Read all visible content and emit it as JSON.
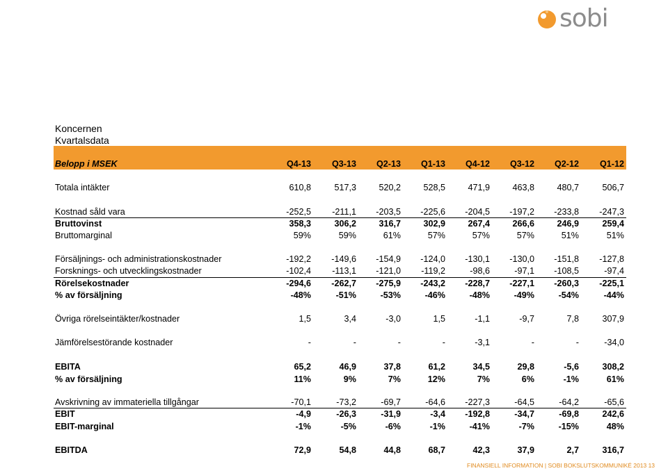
{
  "brand": {
    "logo_text": "sobi",
    "accent": "#f29a2e",
    "footer_color": "#e08a1e",
    "logo_gray": "#8c8c8c"
  },
  "heading": {
    "line1": "Koncernen",
    "line2": "Kvartalsdata"
  },
  "table": {
    "unit_label": "Belopp i MSEK",
    "columns": [
      "Q4-13",
      "Q3-13",
      "Q2-13",
      "Q1-13",
      "Q4-12",
      "Q3-12",
      "Q2-12",
      "Q1-12"
    ],
    "rows": [
      {
        "label": "Totala intäkter",
        "values": [
          "610,8",
          "517,3",
          "520,2",
          "528,5",
          "471,9",
          "463,8",
          "480,7",
          "506,7"
        ]
      },
      {
        "label": "Kostnad såld vara",
        "values": [
          "-252,5",
          "-211,1",
          "-203,5",
          "-225,6",
          "-204,5",
          "-197,2",
          "-233,8",
          "-247,3"
        ]
      },
      {
        "label": "Bruttovinst",
        "values": [
          "358,3",
          "306,2",
          "316,7",
          "302,9",
          "267,4",
          "266,6",
          "246,9",
          "259,4"
        ]
      },
      {
        "label": "Bruttomarginal",
        "values": [
          "59%",
          "59%",
          "61%",
          "57%",
          "57%",
          "57%",
          "51%",
          "51%"
        ]
      },
      {
        "label": "Försäljnings- och administrationskostnader",
        "values": [
          "-192,2",
          "-149,6",
          "-154,9",
          "-124,0",
          "-130,1",
          "-130,0",
          "-151,8",
          "-127,8"
        ]
      },
      {
        "label": "Forsknings- och utvecklingskostnader",
        "values": [
          "-102,4",
          "-113,1",
          "-121,0",
          "-119,2",
          "-98,6",
          "-97,1",
          "-108,5",
          "-97,4"
        ]
      },
      {
        "label": "Rörelsekostnader",
        "values": [
          "-294,6",
          "-262,7",
          "-275,9",
          "-243,2",
          "-228,7",
          "-227,1",
          "-260,3",
          "-225,1"
        ]
      },
      {
        "label": "% av försäljning",
        "values": [
          "-48%",
          "-51%",
          "-53%",
          "-46%",
          "-48%",
          "-49%",
          "-54%",
          "-44%"
        ]
      },
      {
        "label": "Övriga rörelseintäkter/kostnader",
        "values": [
          "1,5",
          "3,4",
          "-3,0",
          "1,5",
          "-1,1",
          "-9,7",
          "7,8",
          "307,9"
        ]
      },
      {
        "label": "Jämförelsestörande kostnader",
        "values": [
          "-",
          "-",
          "-",
          "-",
          "-3,1",
          "-",
          "-",
          "-34,0"
        ]
      },
      {
        "label": "EBITA",
        "values": [
          "65,2",
          "46,9",
          "37,8",
          "61,2",
          "34,5",
          "29,8",
          "-5,6",
          "308,2"
        ]
      },
      {
        "label": "% av försäljning",
        "values": [
          "11%",
          "9%",
          "7%",
          "12%",
          "7%",
          "6%",
          "-1%",
          "61%"
        ]
      },
      {
        "label": "Avskrivning av immateriella tillgångar",
        "values": [
          "-70,1",
          "-73,2",
          "-69,7",
          "-64,6",
          "-227,3",
          "-64,5",
          "-64,2",
          "-65,6"
        ]
      },
      {
        "label": "EBIT",
        "values": [
          "-4,9",
          "-26,3",
          "-31,9",
          "-3,4",
          "-192,8",
          "-34,7",
          "-69,8",
          "242,6"
        ]
      },
      {
        "label": "EBIT-marginal",
        "values": [
          "-1%",
          "-5%",
          "-6%",
          "-1%",
          "-41%",
          "-7%",
          "-15%",
          "48%"
        ]
      },
      {
        "label": "EBITDA",
        "values": [
          "72,9",
          "54,8",
          "44,8",
          "68,7",
          "42,3",
          "37,9",
          "2,7",
          "316,7"
        ]
      }
    ]
  },
  "footer": "FINANSIELL INFORMATION | SOBI BOKSLUTSKOMMUNIKÉ 2013  13"
}
